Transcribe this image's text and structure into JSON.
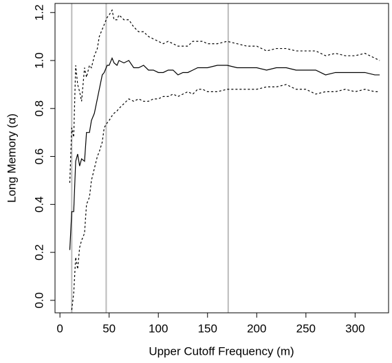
{
  "chart_data": {
    "type": "line",
    "xlabel": "Upper Cutoff Frequency (m)",
    "ylabel": "Long Memory (α)",
    "x": [
      10,
      12,
      14,
      16,
      18,
      20,
      22,
      25,
      27,
      30,
      32,
      35,
      38,
      40,
      43,
      45,
      48,
      50,
      53,
      55,
      58,
      60,
      65,
      70,
      75,
      80,
      85,
      90,
      95,
      100,
      105,
      110,
      115,
      120,
      125,
      130,
      135,
      140,
      145,
      150,
      160,
      170,
      180,
      190,
      200,
      210,
      220,
      230,
      240,
      250,
      260,
      270,
      280,
      290,
      300,
      310,
      320,
      325
    ],
    "series": [
      {
        "color": "#000000",
        "style": "solid",
        "values": [
          0.21,
          0.37,
          0.37,
          0.58,
          0.61,
          0.56,
          0.59,
          0.58,
          0.7,
          0.7,
          0.75,
          0.78,
          0.84,
          0.88,
          0.94,
          0.95,
          0.98,
          0.98,
          1.01,
          0.99,
          0.98,
          1.0,
          0.99,
          1.0,
          0.97,
          0.97,
          0.98,
          0.96,
          0.96,
          0.95,
          0.95,
          0.96,
          0.96,
          0.94,
          0.95,
          0.95,
          0.96,
          0.97,
          0.97,
          0.97,
          0.98,
          0.98,
          0.97,
          0.97,
          0.97,
          0.96,
          0.97,
          0.97,
          0.96,
          0.96,
          0.96,
          0.94,
          0.95,
          0.95,
          0.95,
          0.95,
          0.94,
          0.94
        ]
      },
      {
        "color": "#000000",
        "style": "dashed",
        "values": [
          0.49,
          0.72,
          0.68,
          0.98,
          0.9,
          0.87,
          0.83,
          0.97,
          0.93,
          0.98,
          0.97,
          1.02,
          1.05,
          1.1,
          1.13,
          1.15,
          1.18,
          1.19,
          1.21,
          1.17,
          1.17,
          1.19,
          1.17,
          1.17,
          1.14,
          1.12,
          1.12,
          1.1,
          1.09,
          1.08,
          1.07,
          1.08,
          1.07,
          1.06,
          1.06,
          1.06,
          1.08,
          1.08,
          1.08,
          1.07,
          1.07,
          1.08,
          1.07,
          1.06,
          1.06,
          1.04,
          1.05,
          1.05,
          1.04,
          1.04,
          1.04,
          1.02,
          1.03,
          1.02,
          1.02,
          1.03,
          1.01,
          1.0
        ]
      },
      {
        "color": "#000000",
        "style": "dashed",
        "values": [
          null,
          -0.04,
          0.03,
          0.18,
          0.13,
          0.22,
          0.25,
          0.28,
          0.4,
          0.43,
          0.5,
          0.55,
          0.6,
          0.62,
          0.66,
          0.72,
          0.74,
          0.75,
          0.77,
          0.78,
          0.79,
          0.8,
          0.82,
          0.84,
          0.83,
          0.84,
          0.83,
          0.83,
          0.84,
          0.84,
          0.85,
          0.85,
          0.86,
          0.85,
          0.86,
          0.87,
          0.86,
          0.88,
          0.88,
          0.87,
          0.87,
          0.88,
          0.88,
          0.88,
          0.88,
          0.89,
          0.89,
          0.9,
          0.88,
          0.88,
          0.86,
          0.87,
          0.87,
          0.88,
          0.87,
          0.88,
          0.87,
          0.87
        ]
      }
    ],
    "vlines": [
      12,
      47,
      171
    ],
    "vline_color": "#bbbbbb",
    "xlim": [
      -5,
      334
    ],
    "ylim": [
      -0.052,
      1.238
    ],
    "xticks": [
      0,
      50,
      100,
      150,
      200,
      250,
      300
    ],
    "yticks": [
      {
        "value": 0,
        "label": "0.0"
      },
      {
        "value": 0.2,
        "label": "0.2"
      },
      {
        "value": 0.4,
        "label": "0.4"
      },
      {
        "value": 0.6,
        "label": "0.6"
      },
      {
        "value": 0.8,
        "label": "0.8"
      },
      {
        "value": 1,
        "label": "1.0"
      },
      {
        "value": 1.2,
        "label": "1.2"
      }
    ]
  }
}
